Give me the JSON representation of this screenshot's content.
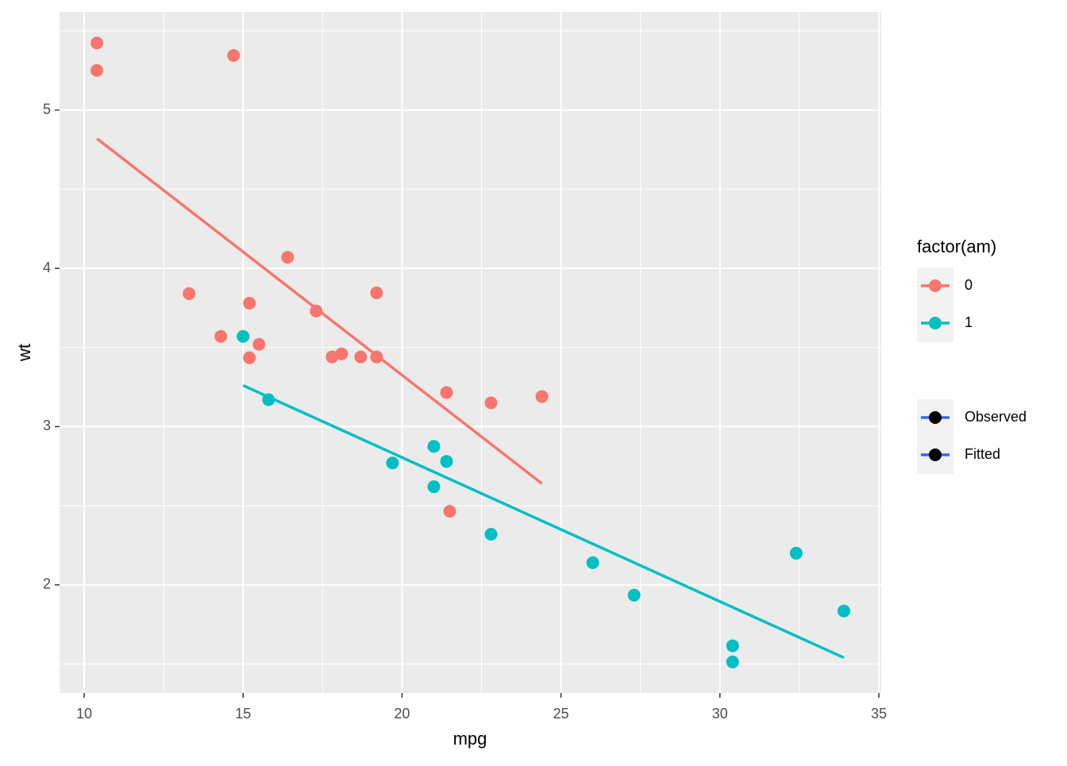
{
  "chart_data": {
    "type": "scatter",
    "x_label": "mpg",
    "y_label": "wt",
    "xlim": [
      9.225,
      35.075
    ],
    "ylim": [
      1.317,
      5.62
    ],
    "xticks": [
      10,
      15,
      20,
      25,
      30,
      35
    ],
    "yticks": [
      2,
      3,
      4,
      5
    ],
    "grid": true,
    "legend_title": "factor(am)",
    "series": [
      {
        "name": "0",
        "color": "#F8766D",
        "x": [
          21.4,
          18.7,
          18.1,
          14.3,
          24.4,
          22.8,
          19.2,
          17.8,
          16.4,
          17.3,
          15.2,
          10.4,
          10.4,
          14.7,
          21.5,
          15.5,
          15.2,
          13.3,
          19.2
        ],
        "values": [
          3.215,
          3.44,
          3.46,
          3.57,
          3.19,
          3.15,
          3.44,
          3.44,
          4.07,
          3.73,
          3.78,
          5.25,
          5.424,
          5.345,
          2.465,
          3.52,
          3.435,
          3.84,
          3.845
        ]
      },
      {
        "name": "1",
        "color": "#00BFC4",
        "x": [
          21.0,
          21.0,
          22.8,
          32.4,
          30.4,
          33.9,
          27.3,
          26.0,
          30.4,
          15.8,
          19.7,
          15.0,
          21.4
        ],
        "values": [
          2.62,
          2.875,
          2.32,
          2.2,
          1.615,
          1.835,
          1.935,
          2.14,
          1.513,
          3.17,
          2.77,
          3.57,
          2.78
        ]
      }
    ],
    "fits": [
      {
        "color": "#F8766D",
        "x": [
          10.4,
          24.4
        ],
        "values": [
          4.82,
          2.64
        ]
      },
      {
        "color": "#00BFC4",
        "x": [
          15.0,
          33.9
        ],
        "values": [
          3.26,
          1.54
        ]
      }
    ],
    "legend2": {
      "color": "#3366FF",
      "entries": [
        "Observed",
        "Fitted"
      ]
    }
  }
}
